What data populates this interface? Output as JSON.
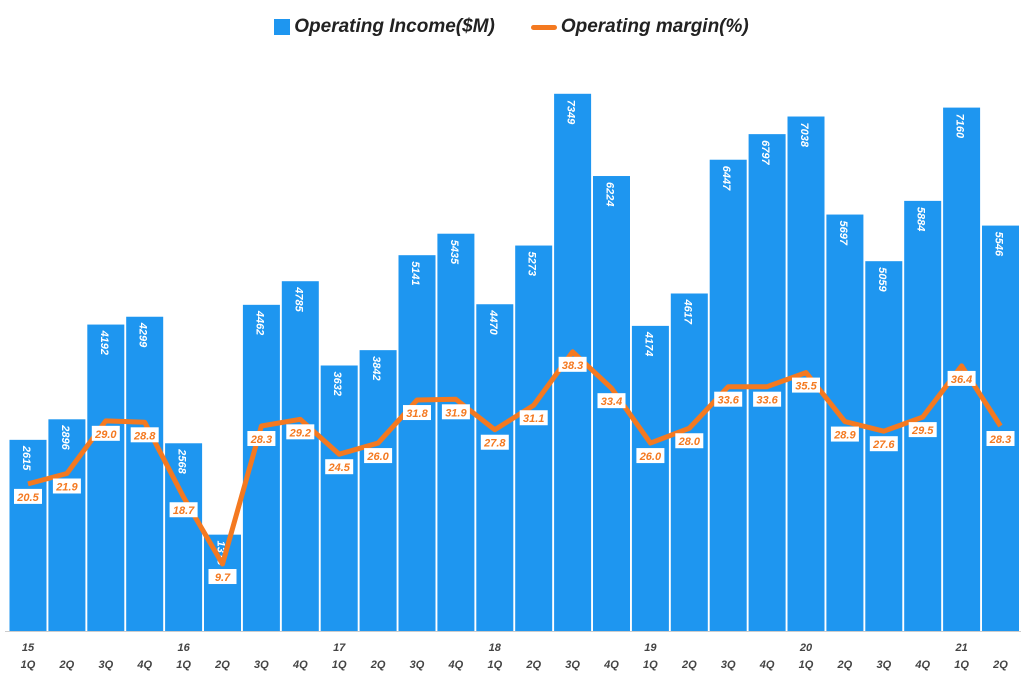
{
  "chart_data": {
    "type": "bar+line",
    "legend_position": "top",
    "grid": false,
    "categories": [
      [
        "15",
        "1Q"
      ],
      [
        "",
        "2Q"
      ],
      [
        "",
        "3Q"
      ],
      [
        "",
        "4Q"
      ],
      [
        "16",
        "1Q"
      ],
      [
        "",
        "2Q"
      ],
      [
        "",
        "3Q"
      ],
      [
        "",
        "4Q"
      ],
      [
        "17",
        "1Q"
      ],
      [
        "",
        "2Q"
      ],
      [
        "",
        "3Q"
      ],
      [
        "",
        "4Q"
      ],
      [
        "18",
        "1Q"
      ],
      [
        "",
        "2Q"
      ],
      [
        "",
        "3Q"
      ],
      [
        "",
        "4Q"
      ],
      [
        "19",
        "1Q"
      ],
      [
        "",
        "2Q"
      ],
      [
        "",
        "3Q"
      ],
      [
        "",
        "4Q"
      ],
      [
        "20",
        "1Q"
      ],
      [
        "",
        "2Q"
      ],
      [
        "",
        "3Q"
      ],
      [
        "",
        "4Q"
      ],
      [
        "21",
        "1Q"
      ],
      [
        "",
        "2Q"
      ]
    ],
    "series": [
      {
        "name": "Operating Income($M)",
        "type": "bar",
        "color": "#1e96f0",
        "values": [
          2615,
          2896,
          4192,
          4299,
          2568,
          1318,
          4462,
          4785,
          3632,
          3842,
          5141,
          5435,
          4470,
          5273,
          7349,
          6224,
          4174,
          4617,
          6447,
          6797,
          7038,
          5697,
          5059,
          5884,
          7160,
          5546
        ]
      },
      {
        "name": "Operating margin(%)",
        "type": "line",
        "color": "#f47920",
        "values": [
          20.5,
          21.9,
          29.0,
          28.8,
          18.7,
          9.7,
          28.3,
          29.2,
          24.5,
          26.0,
          31.8,
          31.9,
          27.8,
          31.1,
          38.3,
          33.4,
          26.0,
          28.0,
          33.6,
          33.6,
          35.5,
          28.9,
          27.6,
          29.5,
          36.4,
          28.3
        ]
      }
    ]
  }
}
